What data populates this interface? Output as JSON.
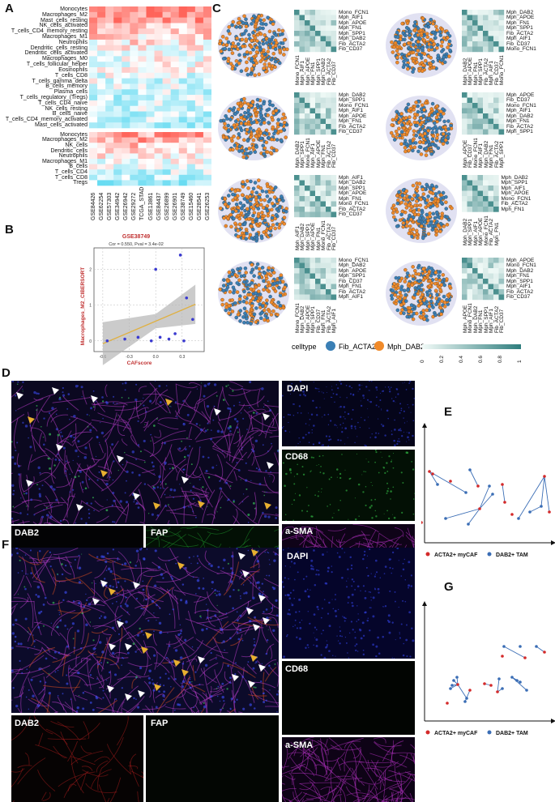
{
  "panels": {
    "A": "A",
    "B": "B",
    "C": "C",
    "D": "D",
    "E": "E",
    "F": "F",
    "G": "G"
  },
  "heatmap": {
    "rows_top": [
      "Monocytes",
      "Macrophages_M2",
      "Mast_cells_resting",
      "NK_cells_activated",
      "T_cells_CD4_memory_resting",
      "Macrophages_M1",
      "Neutrophils",
      "Dendritic_cells_resting",
      "Dendritic_cells_activated",
      "Macrophages_M0",
      "T_cells_follicular_helper",
      "Eosinophils",
      "T_cells_CD8",
      "T_cells_gamma_delta",
      "B_cells_memory",
      "Plasma_cells",
      "T_cells_regulatory_(Tregs)",
      "T_cells_CD4_naive",
      "NK_cells_resting",
      "B_cells_naive",
      "T_cells_CD4_memory_activated",
      "Mast_cells_activated"
    ],
    "rows_bottom": [
      "Monocytes",
      "Macrophages_M2",
      "NK_cells",
      "Dendritic_cells",
      "Neutrophils",
      "Macrophages_M1",
      "B_cells",
      "T_cells_CD4",
      "T_cells_CD8",
      "Tregs"
    ],
    "columns": [
      "GSE84426",
      "GSE62254",
      "GSE57303",
      "GSE34942",
      "GSE26942",
      "GSE29272",
      "TCGA_STAD",
      "GSE13861",
      "GSE84437",
      "GSE26899",
      "GSE26901",
      "GSE38749",
      "GSE15460",
      "GSE28541",
      "GSE26253"
    ]
  },
  "chart_data": {
    "type": "scatter",
    "title": "GSE38749",
    "subtitle": "Cor = 0.550, Pval = 3.4e-02",
    "xlabel": "CAFscore",
    "ylabel": "Macrophages_M2_CIBERSORT",
    "x_ticks": [
      "-0.6",
      "-0.3",
      "0.0",
      "0.3"
    ],
    "y_ticks": [
      "0",
      "1",
      "2"
    ],
    "points": [
      [
        -0.55,
        0
      ],
      [
        -0.35,
        0.05
      ],
      [
        -0.2,
        0.1
      ],
      [
        -0.05,
        0.0
      ],
      [
        0.0,
        2.0
      ],
      [
        0.05,
        0.1
      ],
      [
        0.15,
        0.05
      ],
      [
        0.22,
        0.2
      ],
      [
        0.28,
        2.4
      ],
      [
        0.32,
        0.0
      ],
      [
        0.35,
        1.2
      ],
      [
        0.42,
        0.6
      ]
    ],
    "fit": {
      "slope": 1.05,
      "intercept": 0.55
    }
  },
  "spatial": {
    "legend_title": "celltype",
    "type1": "Fib_ACTA2",
    "type2": "Mph_DAB2",
    "color1": "#3a7fb5",
    "color2": "#f08a2a",
    "colorbar_ticks": [
      "0",
      "0.2",
      "0.4",
      "0.6",
      "0.8",
      "1"
    ],
    "panels": [
      {
        "rows": [
          "Mono_FCN1",
          "Mph_AIF1",
          "Mph_APOE",
          "Mph_FN1",
          "Mph_SPP1",
          "Mph_DAB2",
          "Fib_ACTA2",
          "Fib_CD37"
        ],
        "cols": [
          "Mono_FCN1",
          "Mph_AIF1",
          "Mph_APOE",
          "Mph_FN1",
          "Mph_SPP1",
          "Mph_DAB2",
          "Fib_ACTA2",
          "Fib_CD37"
        ]
      },
      {
        "rows": [
          "Mph_DAB2",
          "Mph_APOE",
          "Mph_FN1",
          "Mph_SPP1",
          "Fib_ACTA2",
          "Mph_AIF1",
          "Fib_CD37",
          "Mono_FCN1"
        ],
        "cols": [
          "Mph_DAB2",
          "Mph_APOE",
          "Mph_FN1",
          "Mph_SPP1",
          "Fib_ACTA2",
          "Mph_AIF1",
          "Fib_CD37",
          "Mono_FCN1"
        ]
      },
      {
        "rows": [
          "Mph_DAB2",
          "Mph_SPP1",
          "Mono_FCN1",
          "Mph_AIF1",
          "Mph_APOE",
          "Mph_FN1",
          "Fib_ACTA2",
          "Fib_CD37"
        ],
        "cols": [
          "Mph_DAB2",
          "Mph_SPP1",
          "Mono_FCN1",
          "Mph_AIF1",
          "Mph_APOE",
          "Mph_FN1",
          "Fib_ACTA2",
          "Fib_CD37"
        ]
      },
      {
        "rows": [
          "Mph_APOE",
          "Fib_CD37",
          "Mono_FCN1",
          "Mph_AIF1",
          "Mph_DAB2",
          "Mph_FN1",
          "Fib_ACTA2",
          "Mph_SPP1"
        ],
        "cols": [
          "Mph_APOE",
          "Fib_CD37",
          "Mono_FCN1",
          "Mph_AIF1",
          "Mph_DAB2",
          "Mph_FN1",
          "Fib_ACTA2",
          "Mph_SPP1"
        ]
      },
      {
        "rows": [
          "Mph_AIF1",
          "Mph_DAB2",
          "Mph_SPP1",
          "Mph_APOE",
          "Mph_FN1",
          "Mono_FCN1",
          "Fib_ACTA2",
          "Fib_CD37"
        ],
        "cols": [
          "Mph_AIF1",
          "Mph_DAB2",
          "Mph_SPP1",
          "Mph_APOE",
          "Mph_FN1",
          "Mono_FCN1",
          "Fib_ACTA2",
          "Fib_CD37"
        ]
      },
      {
        "rows": [
          "Mph_DAB2",
          "Mph_SPP1",
          "Mph_AIF1",
          "Mph_APOE",
          "Mono_FCN1",
          "Fib_ACTA2",
          "Mph_FN1"
        ],
        "cols": [
          "Mph_DAB2",
          "Mph_SPP1",
          "Mph_AIF1",
          "Mph_APOE",
          "Mono_FCN1",
          "Fib_ACTA2",
          "Mph_FN1"
        ]
      },
      {
        "rows": [
          "Mono_FCN1",
          "Mph_DAB2",
          "Mph_APOE",
          "Mph_SPP1",
          "Fib_CD37",
          "Mph_FN1",
          "Fib_ACTA2",
          "Mph_AIF1"
        ],
        "cols": [
          "Mono_FCN1",
          "Mph_DAB2",
          "Mph_APOE",
          "Mph_SPP1",
          "Fib_CD37",
          "Mph_FN1",
          "Fib_ACTA2",
          "Mph_AIF1"
        ]
      },
      {
        "rows": [
          "Mph_APOE",
          "Mono_FCN1",
          "Mph_DAB2",
          "Mph_FN1",
          "Mph_SPP1",
          "Mph_AIF1",
          "Fib_ACTA2",
          "Fib_CD37"
        ],
        "cols": [
          "Mph_APOE",
          "Mono_FCN1",
          "Mph_DAB2",
          "Mph_FN1",
          "Mph_SPP1",
          "Mph_AIF1",
          "Fib_ACTA2",
          "Fib_CD37"
        ]
      }
    ]
  },
  "channels": {
    "dapi": "DAPI",
    "cd68": "CD68",
    "dab2": "DAB2",
    "fap": "FAP",
    "asma": "a-SMA"
  },
  "network_legend": {
    "caf": "ACTA2+ myCAF",
    "tam": "DAB2+ TAM",
    "caf_color": "#d42a2a",
    "tam_color": "#3a6db5"
  }
}
